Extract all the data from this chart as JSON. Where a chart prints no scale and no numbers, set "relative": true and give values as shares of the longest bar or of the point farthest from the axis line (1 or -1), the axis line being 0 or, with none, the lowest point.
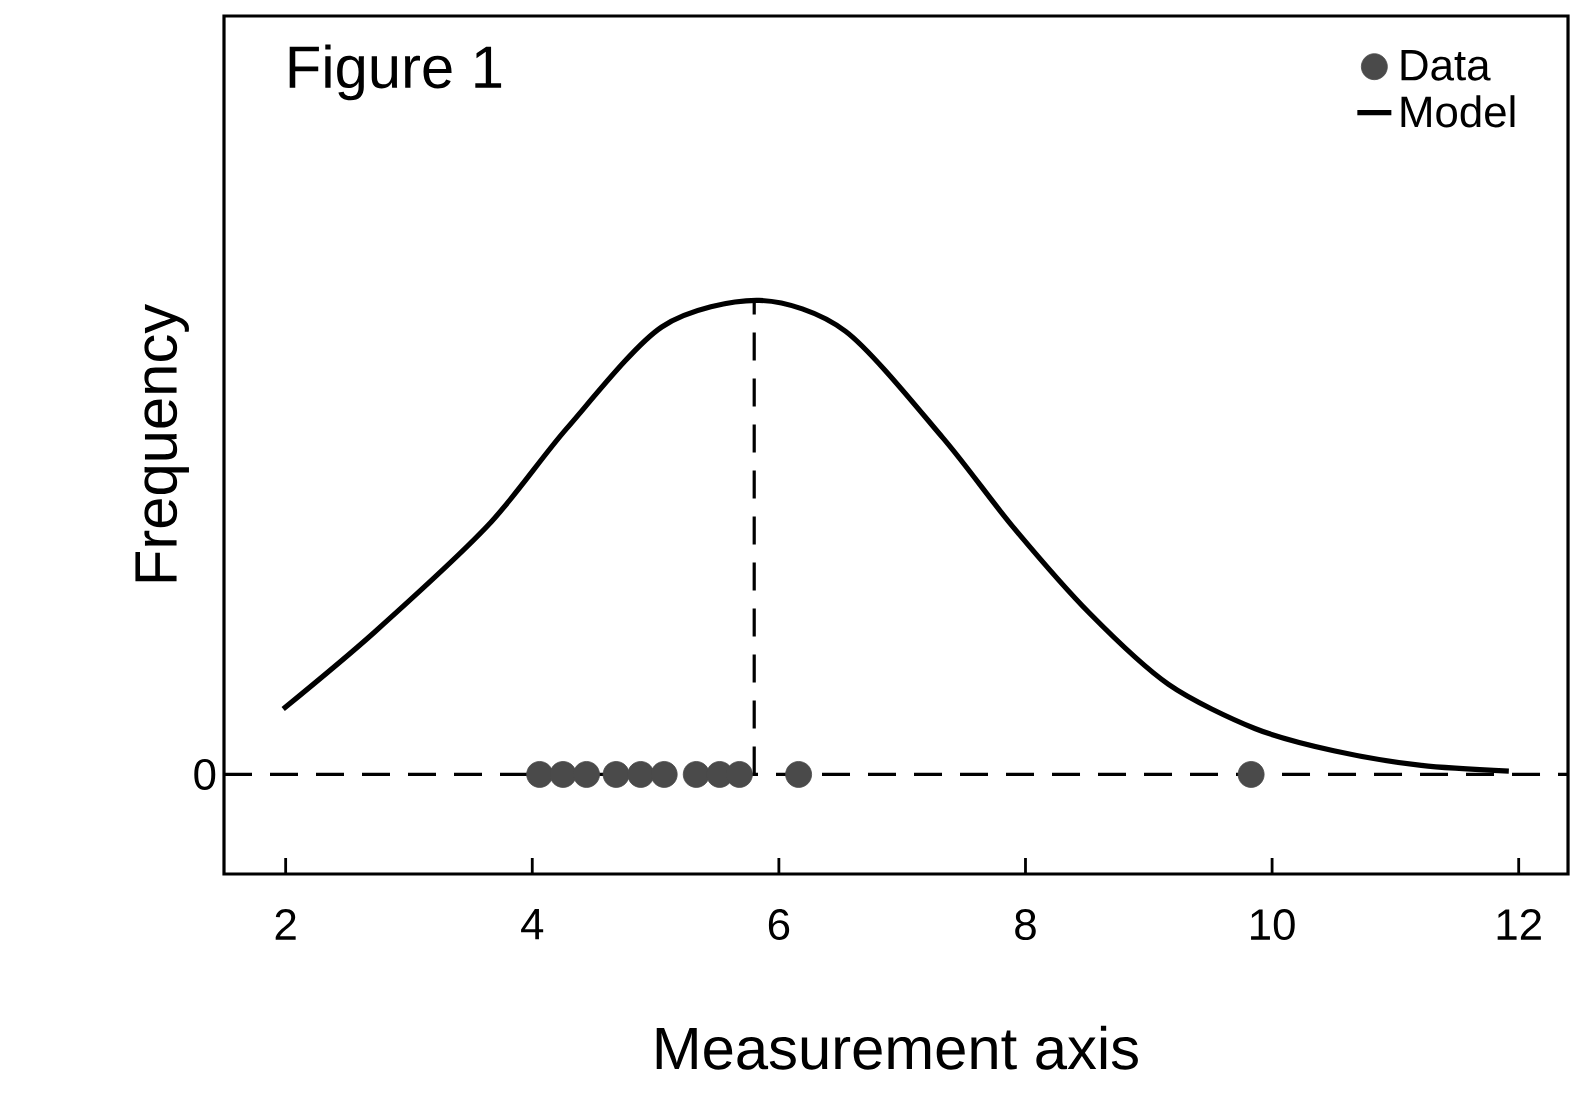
{
  "chart_data": {
    "type": "line",
    "title": "Figure 1",
    "xlabel": "Measurement axis",
    "ylabel": "Frequency",
    "relative": true,
    "xlim": [
      1.5,
      12.4
    ],
    "xticks": [
      2,
      4,
      6,
      8,
      10,
      12
    ],
    "grid": false,
    "legend": "top right",
    "series": [
      {
        "name": "Data",
        "type": "scatter",
        "marker": "circle",
        "color": "#4a4a4a",
        "x": [
          4.06,
          4.25,
          4.44,
          4.68,
          4.88,
          5.07,
          5.33,
          5.52,
          5.68,
          6.16,
          9.83
        ],
        "values": [
          0,
          0,
          0,
          0,
          0,
          0,
          0,
          0,
          0,
          0,
          0
        ]
      },
      {
        "name": "Model",
        "line_style": "solid",
        "color": "#000000",
        "x": [
          1.98,
          2.72,
          3.64,
          4.28,
          5.05,
          5.84,
          6.54,
          7.33,
          7.89,
          8.52,
          9.16,
          9.86,
          10.5,
          11.21,
          11.92
        ],
        "values": [
          0.138,
          0.3,
          0.525,
          0.73,
          0.944,
          1.0,
          0.935,
          0.71,
          0.525,
          0.34,
          0.19,
          0.097,
          0.05,
          0.019,
          0.007
        ]
      }
    ],
    "ref_lines": [
      {
        "axis": "y",
        "value": 0,
        "label": "0",
        "line_style": "dashed",
        "color": "#000000"
      },
      {
        "axis": "x",
        "value": 5.8,
        "line_style": "dashed",
        "color": "#000000"
      }
    ]
  }
}
